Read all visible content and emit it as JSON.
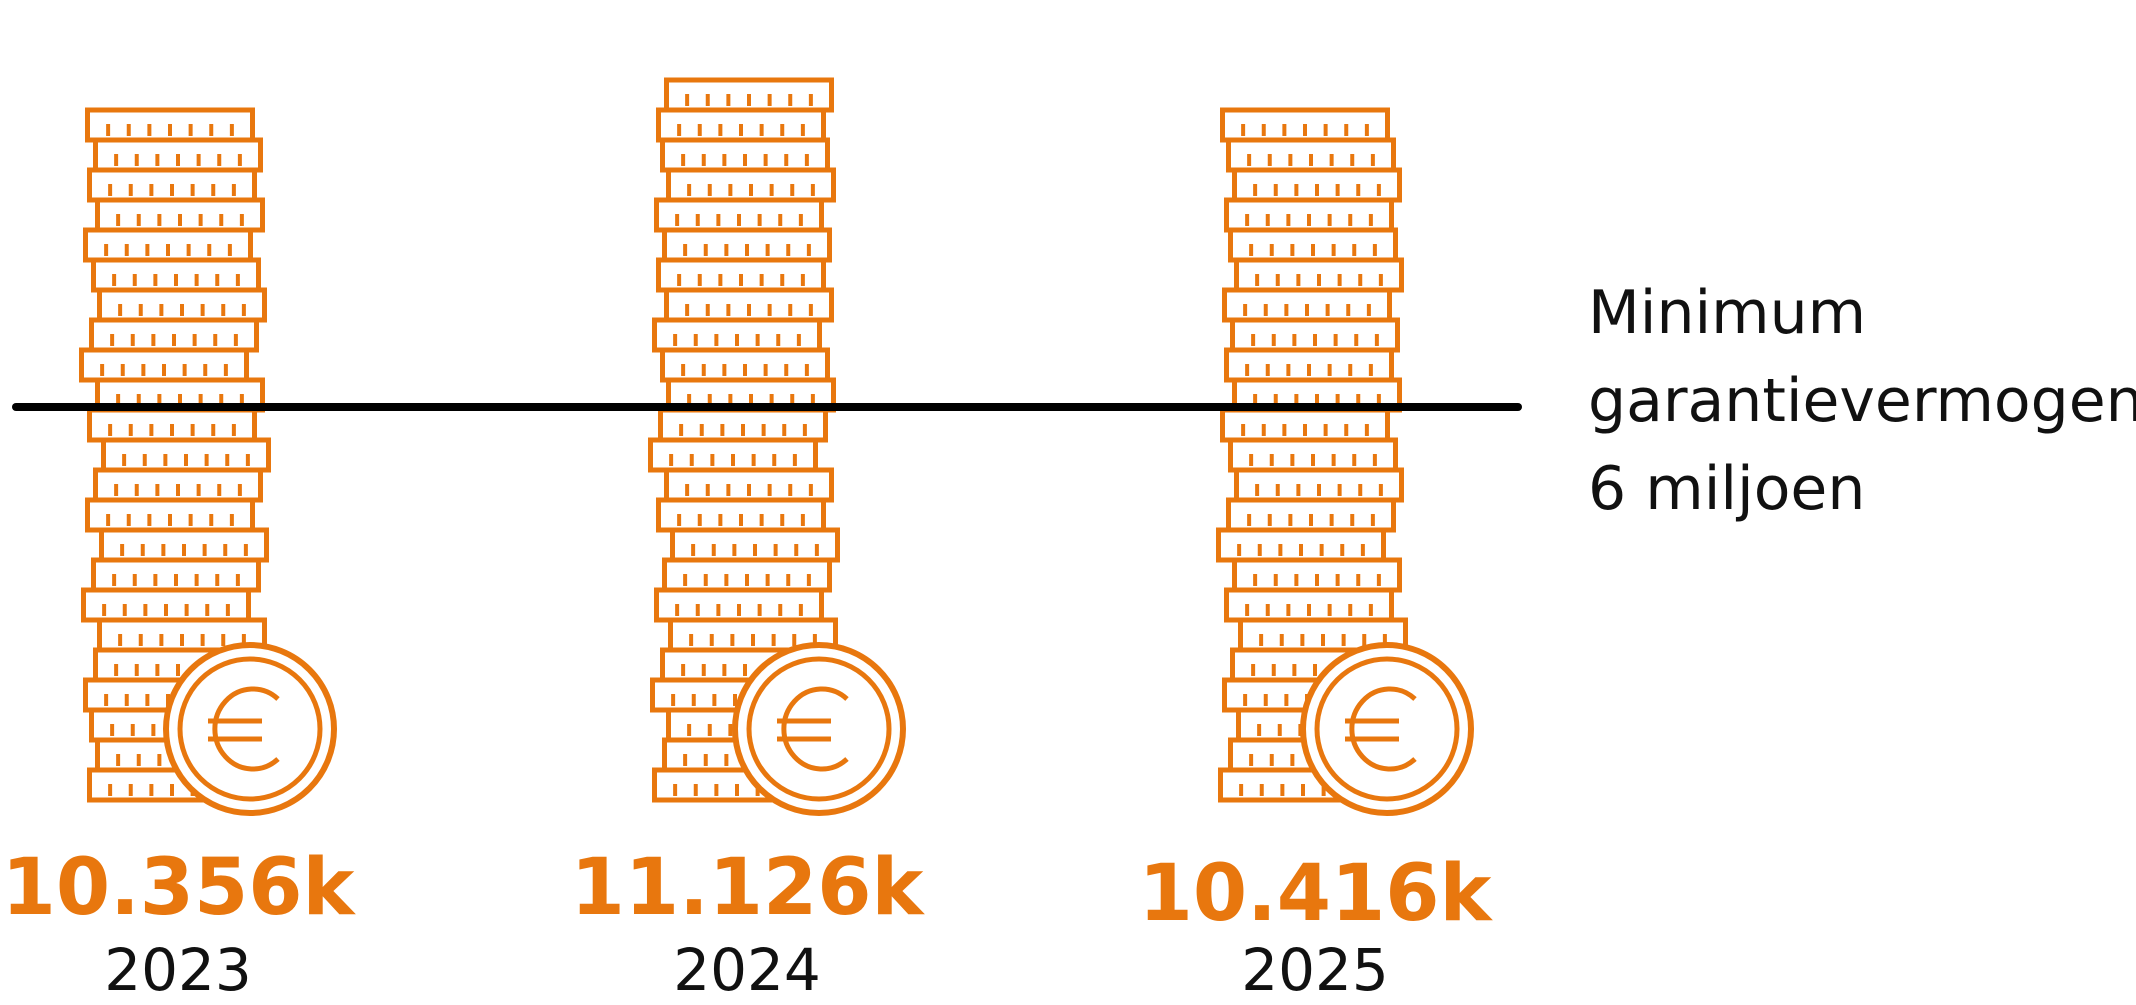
{
  "chart_data": {
    "type": "coin-stack",
    "categories": [
      "2023",
      "2024",
      "2025"
    ],
    "values": [
      10356,
      11126,
      10416
    ],
    "value_labels": [
      "10.356k",
      "11.126k",
      "10.416k"
    ],
    "color": "#e8770e",
    "reference_line": {
      "value": 6000,
      "label_lines": [
        "Minimum",
        "garantievermogen",
        "6 miljoen"
      ],
      "color": "#000000"
    }
  }
}
